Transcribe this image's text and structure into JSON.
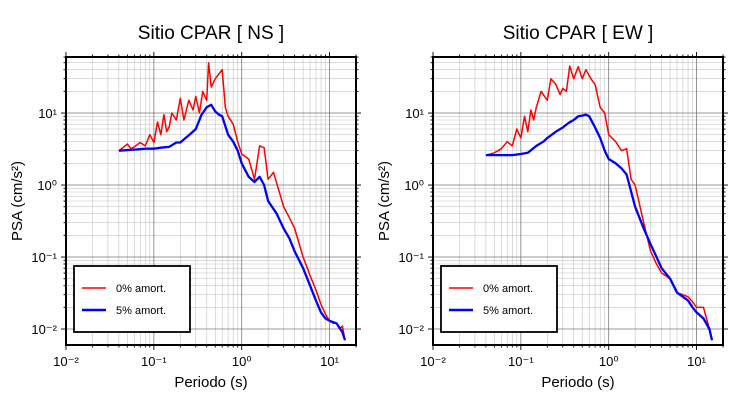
{
  "figure": {
    "background": "#ffffff"
  },
  "chart_data": [
    {
      "type": "line",
      "title": "Sitio CPAR [ NS ]",
      "xlabel": "Periodo (s)",
      "ylabel": "PSA (cm/s²)",
      "xscale": "log",
      "yscale": "log",
      "xlim": [
        0.01,
        20
      ],
      "ylim": [
        0.006,
        60
      ],
      "xticks": [
        "10⁻²",
        "10⁻¹",
        "10⁰",
        "10¹"
      ],
      "yticks": [
        "10⁻²",
        "10⁻¹",
        "10⁰",
        "10¹"
      ],
      "grid": true,
      "legend": "bottom-left",
      "series": [
        {
          "name": "0% amort.",
          "color": "#ff0000",
          "x": [
            0.04,
            0.05,
            0.055,
            0.06,
            0.07,
            0.08,
            0.09,
            0.1,
            0.11,
            0.12,
            0.13,
            0.14,
            0.15,
            0.16,
            0.18,
            0.2,
            0.22,
            0.25,
            0.28,
            0.3,
            0.33,
            0.36,
            0.4,
            0.42,
            0.45,
            0.5,
            0.55,
            0.6,
            0.65,
            0.7,
            0.8,
            0.9,
            1.0,
            1.2,
            1.4,
            1.6,
            1.8,
            2.0,
            2.3,
            2.6,
            3.0,
            3.5,
            4.0,
            5.0,
            6.0,
            7.0,
            8.0,
            9.0,
            10.0,
            11.0,
            12.0,
            13.0,
            14.0,
            15.0
          ],
          "y": [
            3.0,
            3.7,
            3.2,
            3.4,
            3.9,
            3.5,
            5.0,
            3.9,
            7.5,
            5.0,
            9.5,
            5.5,
            6.5,
            10.0,
            8.0,
            16.0,
            8.0,
            15.0,
            11.0,
            17.0,
            10.0,
            20.0,
            15.0,
            50.0,
            23.0,
            30.0,
            35.0,
            40.0,
            12.0,
            9.0,
            7.0,
            4.0,
            2.7,
            2.3,
            1.2,
            3.5,
            3.3,
            1.2,
            1.5,
            0.9,
            0.5,
            0.35,
            0.25,
            0.1,
            0.055,
            0.035,
            0.022,
            0.016,
            0.013,
            0.012,
            0.012,
            0.01,
            0.011,
            0.007
          ]
        },
        {
          "name": "5% amort.",
          "color": "#0000ff",
          "x": [
            0.04,
            0.06,
            0.08,
            0.1,
            0.12,
            0.15,
            0.18,
            0.2,
            0.25,
            0.3,
            0.35,
            0.4,
            0.45,
            0.5,
            0.55,
            0.6,
            0.7,
            0.8,
            0.9,
            1.0,
            1.1,
            1.2,
            1.4,
            1.6,
            1.8,
            2.0,
            2.5,
            3.0,
            3.5,
            4.0,
            5.0,
            6.0,
            7.0,
            8.0,
            9.0,
            10.0,
            12.0,
            14.0,
            15.0
          ],
          "y": [
            3.0,
            3.1,
            3.2,
            3.2,
            3.3,
            3.4,
            3.9,
            3.9,
            4.9,
            6.0,
            9.5,
            12.0,
            13.0,
            10.5,
            9.5,
            9.0,
            5.0,
            4.0,
            3.0,
            2.0,
            1.6,
            1.3,
            1.1,
            1.3,
            1.0,
            0.6,
            0.4,
            0.25,
            0.18,
            0.12,
            0.07,
            0.04,
            0.025,
            0.017,
            0.014,
            0.013,
            0.012,
            0.009,
            0.007
          ]
        }
      ]
    },
    {
      "type": "line",
      "title": "Sitio CPAR [ EW ]",
      "xlabel": "Periodo (s)",
      "ylabel": "PSA (cm/s²)",
      "xscale": "log",
      "yscale": "log",
      "xlim": [
        0.01,
        20
      ],
      "ylim": [
        0.006,
        60
      ],
      "xticks": [
        "10⁻²",
        "10⁻¹",
        "10⁰",
        "10¹"
      ],
      "yticks": [
        "10⁻²",
        "10⁻¹",
        "10⁰",
        "10¹"
      ],
      "grid": true,
      "legend": "bottom-left",
      "series": [
        {
          "name": "0% amort.",
          "color": "#ff0000",
          "x": [
            0.04,
            0.05,
            0.06,
            0.07,
            0.08,
            0.09,
            0.1,
            0.11,
            0.12,
            0.13,
            0.14,
            0.15,
            0.17,
            0.2,
            0.22,
            0.25,
            0.28,
            0.3,
            0.33,
            0.36,
            0.4,
            0.45,
            0.5,
            0.55,
            0.6,
            0.65,
            0.7,
            0.8,
            0.9,
            1.0,
            1.2,
            1.4,
            1.6,
            1.8,
            2.0,
            2.5,
            3.0,
            3.5,
            4.0,
            5.0,
            6.0,
            7.0,
            8.0,
            9.0,
            10.0,
            12.0,
            14.0,
            15.0
          ],
          "y": [
            2.6,
            2.8,
            3.2,
            4.0,
            3.5,
            6.0,
            4.5,
            9.0,
            5.5,
            11.0,
            8.0,
            12.0,
            20.0,
            15.0,
            30.0,
            25.0,
            18.0,
            22.0,
            20.0,
            45.0,
            30.0,
            44.0,
            30.0,
            40.0,
            33.0,
            28.0,
            25.0,
            12.0,
            10.0,
            5.0,
            4.0,
            3.0,
            3.2,
            1.2,
            1.0,
            0.3,
            0.12,
            0.08,
            0.06,
            0.05,
            0.032,
            0.03,
            0.028,
            0.024,
            0.02,
            0.02,
            0.01,
            0.007
          ]
        },
        {
          "name": "5% amort.",
          "color": "#0000ff",
          "x": [
            0.04,
            0.06,
            0.08,
            0.1,
            0.12,
            0.15,
            0.18,
            0.2,
            0.25,
            0.3,
            0.35,
            0.4,
            0.45,
            0.5,
            0.55,
            0.6,
            0.7,
            0.8,
            0.9,
            1.0,
            1.2,
            1.4,
            1.6,
            2.0,
            2.5,
            3.0,
            3.5,
            4.0,
            5.0,
            6.0,
            7.0,
            8.0,
            9.0,
            10.0,
            12.0,
            14.0,
            15.0
          ],
          "y": [
            2.6,
            2.6,
            2.6,
            2.7,
            2.8,
            3.5,
            4.0,
            4.5,
            5.5,
            6.3,
            7.3,
            8.0,
            9.0,
            9.2,
            9.5,
            9.0,
            6.3,
            4.5,
            3.0,
            2.3,
            2.0,
            1.7,
            1.4,
            0.5,
            0.25,
            0.15,
            0.1,
            0.07,
            0.05,
            0.032,
            0.028,
            0.025,
            0.02,
            0.017,
            0.014,
            0.01,
            0.007
          ]
        }
      ]
    }
  ]
}
